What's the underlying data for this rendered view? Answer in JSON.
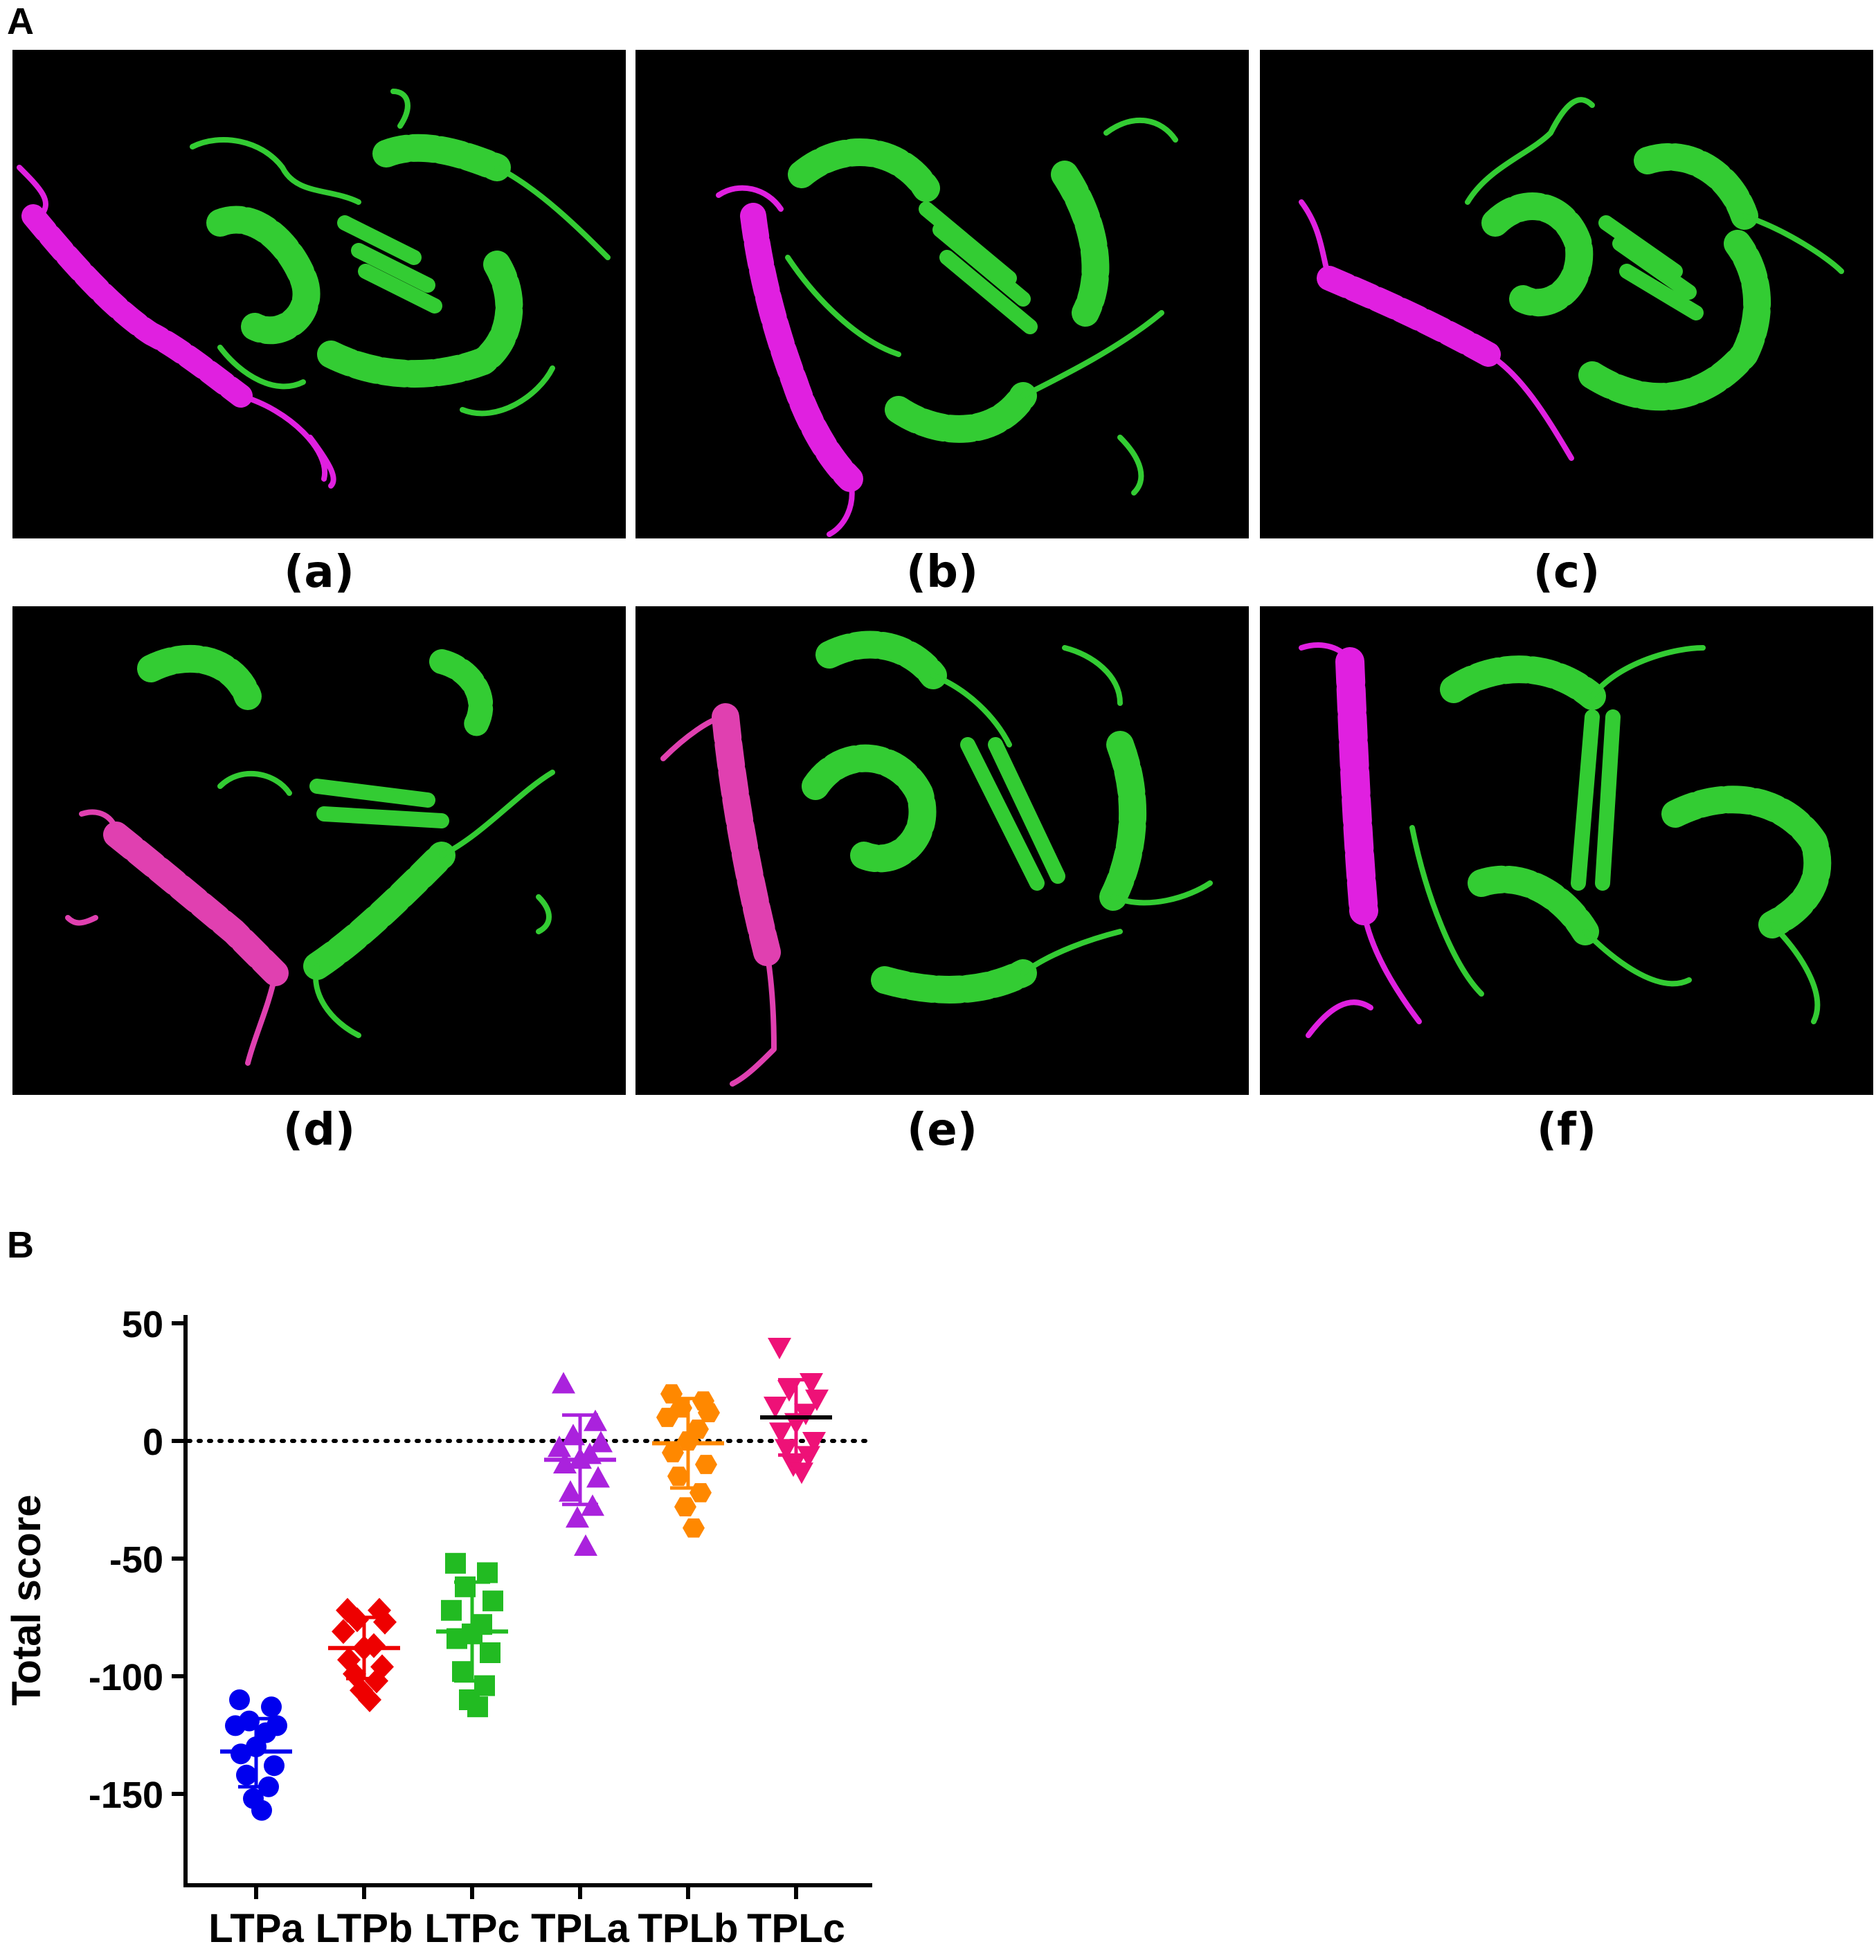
{
  "panel_a_label": "A",
  "panel_b_label": "B",
  "structures": [
    {
      "label": "(a)"
    },
    {
      "label": "(b)"
    },
    {
      "label": "(c)"
    },
    {
      "label": "(d)"
    },
    {
      "label": "(e)"
    },
    {
      "label": "(f)"
    }
  ],
  "colors": {
    "background": "#000000",
    "protein_green": "#33cc33",
    "peptide_magenta": "#e020e0",
    "peptide_pink": "#e040b0",
    "LTPa": "#0000ee",
    "LTPb": "#ee0000",
    "LTPc": "#22bb22",
    "TPLa": "#aa22dd",
    "TPLb": "#ff8800",
    "TPLc": "#ee1177"
  },
  "chart_data": {
    "type": "scatter",
    "ylabel": "Total score",
    "xlabel": "",
    "ylim": [
      -180,
      50
    ],
    "yticks": [
      50,
      0,
      -50,
      -100,
      -150
    ],
    "reference_line": 0,
    "categories": [
      "LTPa",
      "LTPb",
      "LTPc",
      "TPLa",
      "TPLb",
      "TPLc"
    ],
    "series": [
      {
        "category": "LTPa",
        "marker": "circle",
        "mean": -132,
        "sd_upper": -118,
        "sd_lower": -147,
        "values": [
          -110,
          -113,
          -119,
          -121,
          -121,
          -124,
          -130,
          -133,
          -138,
          -142,
          -147,
          -152,
          -157
        ]
      },
      {
        "category": "LTPb",
        "marker": "diamond",
        "mean": -88,
        "sd_upper": -75,
        "sd_lower": -101,
        "values": [
          -72,
          -72,
          -76,
          -77,
          -81,
          -87,
          -88,
          -93,
          -96,
          -99,
          -102,
          -106,
          -110
        ]
      },
      {
        "category": "LTPc",
        "marker": "square",
        "mean": -81,
        "sd_upper": -60,
        "sd_lower": -102,
        "values": [
          -52,
          -56,
          -62,
          -68,
          -72,
          -78,
          -82,
          -84,
          -90,
          -98,
          -104,
          -110,
          -113
        ]
      },
      {
        "category": "TPLa",
        "marker": "triangle-up",
        "mean": -8,
        "sd_upper": 11,
        "sd_lower": -27,
        "values": [
          24,
          8,
          2,
          -1,
          -3,
          -6,
          -8,
          -10,
          -16,
          -22,
          -28,
          -33,
          -45
        ]
      },
      {
        "category": "TPLb",
        "marker": "hexagon",
        "mean": -1,
        "sd_upper": 18,
        "sd_lower": -20,
        "values": [
          20,
          17,
          14,
          12,
          10,
          5,
          0,
          -5,
          -10,
          -15,
          -22,
          -28,
          -37
        ]
      },
      {
        "category": "TPLc",
        "marker": "triangle-down",
        "mean": 10,
        "sd_upper": 26,
        "sd_lower": -6,
        "values": [
          40,
          25,
          22,
          18,
          15,
          12,
          8,
          4,
          0,
          -3,
          -6,
          -10,
          -13
        ]
      }
    ]
  }
}
